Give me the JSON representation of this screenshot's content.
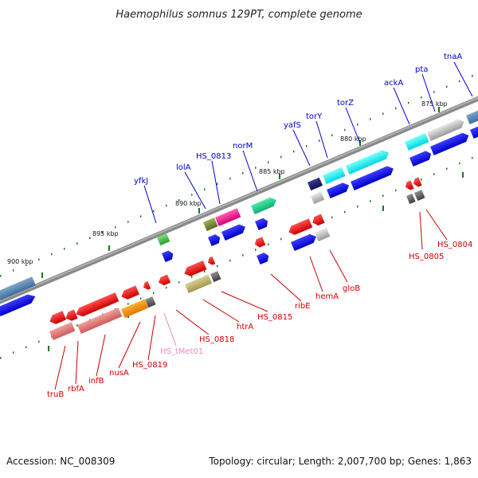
{
  "title": "Haemophilus somnus 129PT, complete genome",
  "footer": {
    "accession": "Accession: NC_008309",
    "stats": "Topology: circular; Length: 2,007,700 bp; Genes: 1,863"
  },
  "ticks": [
    "900 kbp",
    "895 kbp",
    "890 kbp",
    "885 kbp",
    "880 kbp",
    "875 kbp"
  ],
  "genes_top": [
    "yfkJ",
    "lolA",
    "HS_0813",
    "norM",
    "yafS",
    "torY",
    "torZ",
    "ackA",
    "pta",
    "tnaA"
  ],
  "genes_bottom": [
    "truB",
    "rbfA",
    "infB",
    "nusA",
    "HS_0819",
    "HS_tMet01",
    "HS_0818",
    "htrA",
    "HS_0815",
    "ribE",
    "hemA",
    "gloB",
    "HS_0805",
    "HS_0804"
  ],
  "colors": {
    "strand_top": "#0000cc",
    "strand_bottom": "#cc0000",
    "trna": "#ee88bb",
    "backbone": "#777777",
    "tick_marks": "#1a7a1a"
  }
}
